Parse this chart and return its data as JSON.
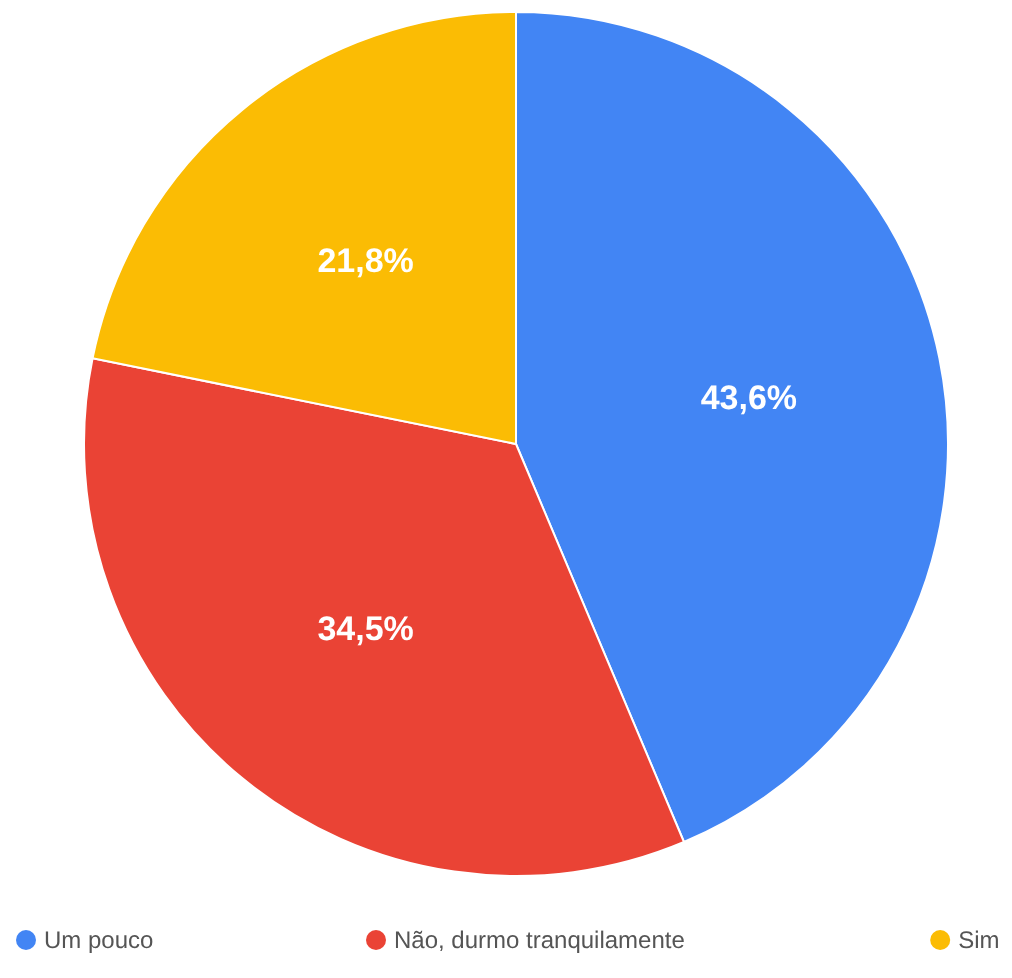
{
  "chart_data": {
    "type": "pie",
    "categories": [
      "Um pouco",
      "Não, durmo tranquilamente",
      "Sim"
    ],
    "values": [
      43.6,
      34.5,
      21.8
    ],
    "colors": [
      "#4285f4",
      "#ea4335",
      "#fbbc04"
    ],
    "value_labels": [
      "43,6%",
      "34,5%",
      "21,8%"
    ],
    "legend": "bottom"
  }
}
